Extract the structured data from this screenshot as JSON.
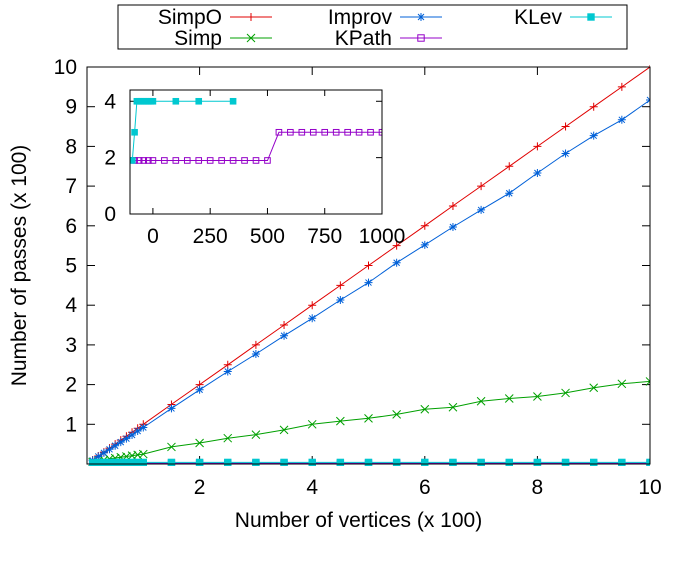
{
  "chart_data": [
    {
      "id": "main",
      "type": "line",
      "title": "",
      "xlabel": "Number of vertices (x 100)",
      "ylabel": "Number of passes (x 100)",
      "xlim": [
        0,
        10
      ],
      "ylim": [
        0,
        10
      ],
      "xticks": [
        2,
        4,
        6,
        8,
        10
      ],
      "yticks": [
        1,
        2,
        3,
        4,
        5,
        6,
        7,
        8,
        9,
        10
      ],
      "grid": false,
      "legend_position": "top",
      "series": [
        {
          "name": "SimpO",
          "color": "#e00000",
          "marker": "plus",
          "x": [
            0.1,
            0.2,
            0.3,
            0.4,
            0.5,
            0.6,
            0.7,
            0.8,
            0.9,
            1.0,
            1.5,
            2.0,
            2.5,
            3.0,
            3.5,
            4.0,
            4.5,
            5.0,
            5.5,
            6.0,
            6.5,
            7.0,
            7.5,
            8.0,
            8.5,
            9.0,
            9.5,
            10.0
          ],
          "y": [
            0.1,
            0.2,
            0.3,
            0.4,
            0.5,
            0.6,
            0.7,
            0.8,
            0.9,
            1.0,
            1.5,
            2.0,
            2.5,
            3.0,
            3.5,
            4.0,
            4.5,
            5.0,
            5.5,
            6.0,
            6.5,
            7.0,
            7.5,
            8.0,
            8.5,
            9.0,
            9.5,
            10.0
          ]
        },
        {
          "name": "Simp",
          "color": "#00a000",
          "marker": "x",
          "x": [
            0.1,
            0.2,
            0.3,
            0.4,
            0.5,
            0.6,
            0.7,
            0.8,
            0.9,
            1.0,
            1.5,
            2.0,
            2.5,
            3.0,
            3.5,
            4.0,
            4.5,
            5.0,
            5.5,
            6.0,
            6.5,
            7.0,
            7.5,
            8.0,
            8.5,
            9.0,
            9.5,
            10.0
          ],
          "y": [
            0.05,
            0.08,
            0.1,
            0.13,
            0.15,
            0.17,
            0.19,
            0.21,
            0.23,
            0.25,
            0.43,
            0.53,
            0.65,
            0.74,
            0.86,
            1.0,
            1.08,
            1.15,
            1.25,
            1.38,
            1.43,
            1.58,
            1.65,
            1.7,
            1.79,
            1.92,
            2.02,
            2.08
          ]
        },
        {
          "name": "Improv",
          "color": "#0060d8",
          "marker": "star",
          "x": [
            0.1,
            0.2,
            0.3,
            0.4,
            0.5,
            0.6,
            0.7,
            0.8,
            0.9,
            1.0,
            1.5,
            2.0,
            2.5,
            3.0,
            3.5,
            4.0,
            4.5,
            5.0,
            5.5,
            6.0,
            6.5,
            7.0,
            7.5,
            8.0,
            8.5,
            9.0,
            9.5,
            10.0
          ],
          "y": [
            0.09,
            0.19,
            0.28,
            0.37,
            0.46,
            0.55,
            0.64,
            0.73,
            0.83,
            0.92,
            1.4,
            1.87,
            2.33,
            2.77,
            3.23,
            3.67,
            4.13,
            4.57,
            5.07,
            5.52,
            5.97,
            6.4,
            6.82,
            7.33,
            7.82,
            8.27,
            8.67,
            9.17
          ]
        },
        {
          "name": "KPath",
          "color": "#9400c8",
          "marker": "open-square",
          "x": [
            0.1,
            0.2,
            0.3,
            0.4,
            0.5,
            0.6,
            0.7,
            0.8,
            0.9,
            1.0,
            1.5,
            2.0,
            2.5,
            3.0,
            3.5,
            4.0,
            4.5,
            5.0,
            5.5,
            6.0,
            6.5,
            7.0,
            7.5,
            8.0,
            8.5,
            9.0,
            9.5,
            10.0
          ],
          "y": [
            0.02,
            0.02,
            0.02,
            0.02,
            0.02,
            0.02,
            0.02,
            0.02,
            0.02,
            0.02,
            0.02,
            0.02,
            0.02,
            0.02,
            0.02,
            0.02,
            0.02,
            0.02,
            0.02,
            0.02,
            0.02,
            0.02,
            0.02,
            0.02,
            0.02,
            0.02,
            0.02,
            0.02
          ]
        },
        {
          "name": "KLev",
          "color": "#00c8d0",
          "marker": "filled-square",
          "x": [
            0.1,
            0.2,
            0.3,
            0.4,
            0.5,
            0.6,
            0.7,
            0.8,
            0.9,
            1.0,
            1.5,
            2.0,
            2.5,
            3.0,
            3.5,
            4.0,
            4.5,
            5.0,
            5.5,
            6.0,
            6.5,
            7.0,
            7.5,
            8.0,
            8.5,
            9.0,
            9.5,
            10.0
          ],
          "y": [
            0.03,
            0.04,
            0.04,
            0.04,
            0.04,
            0.04,
            0.04,
            0.04,
            0.04,
            0.04,
            0.04,
            0.04,
            0.04,
            0.04,
            0.04,
            0.04,
            0.04,
            0.04,
            0.04,
            0.04,
            0.04,
            0.04,
            0.04,
            0.04,
            0.04,
            0.04,
            0.04,
            0.04
          ]
        }
      ]
    },
    {
      "id": "inset",
      "type": "line",
      "title": "",
      "xlabel": "",
      "ylabel": "",
      "xlim": [
        -100,
        1000
      ],
      "ylim": [
        0,
        4.4
      ],
      "xticks": [
        0,
        250,
        500,
        750,
        1000
      ],
      "yticks": [
        0,
        2,
        4
      ],
      "grid": false,
      "series": [
        {
          "name": "KPath",
          "color": "#9400c8",
          "marker": "open-square",
          "x": [
            -80,
            -60,
            -40,
            -20,
            0,
            50,
            100,
            150,
            200,
            250,
            300,
            350,
            400,
            450,
            500,
            550,
            600,
            650,
            700,
            750,
            800,
            850,
            900,
            950,
            1000
          ],
          "y": [
            1.9,
            1.9,
            1.9,
            1.9,
            1.9,
            1.9,
            1.9,
            1.9,
            1.9,
            1.9,
            1.9,
            1.9,
            1.9,
            1.9,
            1.9,
            2.9,
            2.9,
            2.9,
            2.9,
            2.9,
            2.9,
            2.9,
            2.9,
            2.9,
            2.9
          ]
        },
        {
          "name": "KLev",
          "color": "#00c8d0",
          "marker": "filled-square",
          "x": [
            -90,
            -80,
            -70,
            -60,
            -50,
            -40,
            -30,
            -20,
            -10,
            0,
            100,
            200,
            350
          ],
          "y": [
            1.9,
            2.9,
            4.0,
            4.0,
            4.0,
            4.0,
            4.0,
            4.0,
            4.0,
            4.0,
            4.0,
            4.0,
            4.0
          ]
        }
      ]
    }
  ]
}
